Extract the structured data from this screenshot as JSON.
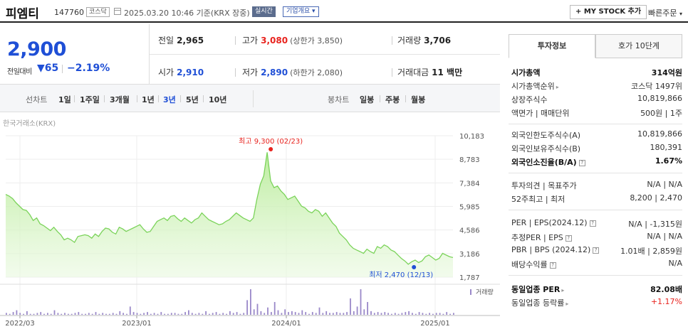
{
  "header": {
    "name": "피엠티",
    "code": "147760",
    "market": "코스닥",
    "datetime": "2025.03.20 10:46 기준(KRX 장중)",
    "realtime_label": "실시간",
    "overview_label": "기업개요",
    "mystock_label": "+ MY STOCK 추가",
    "quick_order_label": "빠른주문"
  },
  "price": {
    "current": "2,900",
    "change_label": "전일대비",
    "change": "▼65",
    "change_pct": "−2.19%"
  },
  "stats": {
    "prev_close_label": "전일",
    "prev_close": "2,965",
    "high_label": "고가",
    "high": "3,080",
    "upper_limit": "(상한가 3,850)",
    "volume_label": "거래량",
    "volume": "3,706",
    "open_label": "시가",
    "open": "2,910",
    "low_label": "저가",
    "low": "2,890",
    "lower_limit": "(하한가 2,080)",
    "trade_value_label": "거래대금",
    "trade_value": "11 백만"
  },
  "periods": {
    "line_label": "선차트",
    "line_tabs": [
      "1일",
      "1주일",
      "3개월",
      "1년",
      "3년",
      "5년",
      "10년"
    ],
    "active": "3년",
    "candle_label": "봉차트",
    "candle_tabs": [
      "일봉",
      "주봉",
      "월봉"
    ]
  },
  "chart_data": {
    "type": "area",
    "source_label": "한국거래소(KRX)",
    "y_ticks": [
      "10,183",
      "8,783",
      "7,384",
      "5,985",
      "4,586",
      "3,186",
      "1,787"
    ],
    "ylim": [
      1787,
      10183
    ],
    "x_ticks": [
      "2022/03",
      "2023/01",
      "2024/01",
      "2025/01"
    ],
    "max_label": "최고 9,300 (02/23)",
    "min_label": "최저 2,470 (12/13)",
    "volume_label": "거래량",
    "series": [
      {
        "values": [
          6700,
          6600,
          6450,
          6200,
          6000,
          5800,
          5750,
          5500,
          5150,
          5300,
          4950,
          4850,
          4700,
          4550,
          4750,
          4500,
          4300,
          4000,
          4100,
          4000,
          3850,
          4200,
          4250,
          4300,
          4250,
          4100,
          4350,
          4200,
          4500,
          4700,
          4650,
          4450,
          4350,
          4750,
          4650,
          4500,
          4600,
          4700,
          4800,
          4900,
          4650,
          4450,
          4500,
          4800,
          5100,
          5200,
          5300,
          5150,
          5400,
          5450,
          5250,
          5100,
          5300,
          5150,
          5000,
          5200,
          5300,
          5600,
          5400,
          5200,
          5100,
          5000,
          4900,
          4950,
          5100,
          5200,
          5400,
          5600,
          5450,
          5300,
          5200,
          5100,
          5300,
          6400,
          7300,
          7800,
          9200,
          7500,
          7100,
          7200,
          6900,
          6700,
          6400,
          6500,
          6600,
          6300,
          6000,
          5900,
          5700,
          5600,
          5800,
          5700,
          5400,
          5600,
          5300,
          5000,
          4800,
          4400,
          4200,
          4000,
          3700,
          3500,
          3400,
          3300,
          3200,
          3450,
          3300,
          3200,
          3600,
          3500,
          3700,
          3600,
          3400,
          3300,
          3100,
          2900,
          2750,
          2550,
          2700,
          2800,
          2650,
          2750,
          3000,
          3100,
          2950,
          2800,
          2900,
          3200,
          3100,
          3000,
          2950
        ]
      }
    ],
    "volume": [
      2,
      1,
      3,
      5,
      2,
      1,
      4,
      1,
      1,
      2,
      3,
      1,
      2,
      1,
      5,
      2,
      1,
      2,
      1,
      1,
      2,
      3,
      1,
      1,
      2,
      1,
      3,
      1,
      2,
      1,
      1,
      2,
      1,
      4,
      2,
      1,
      9,
      3,
      2,
      1,
      2,
      3,
      1,
      2,
      1,
      3,
      1,
      1,
      2,
      2,
      1,
      1,
      3,
      5,
      2,
      1,
      2,
      1,
      4,
      1,
      2,
      3,
      1,
      2,
      1,
      4,
      2,
      3,
      1,
      2,
      16,
      28,
      6,
      12,
      4,
      2,
      8,
      3,
      14,
      5,
      2,
      6,
      3,
      4,
      3,
      2,
      5,
      3,
      1,
      3,
      2,
      8,
      2,
      4,
      2,
      2,
      3,
      2,
      2,
      3,
      18,
      4,
      9,
      28,
      6,
      14,
      4,
      2,
      3,
      2,
      3,
      2,
      1,
      2,
      1,
      2,
      3,
      4,
      2,
      1,
      3,
      2,
      1,
      2,
      1,
      2,
      2,
      1,
      3,
      1,
      2
    ]
  },
  "right_panel": {
    "tabs": [
      "투자정보",
      "호가 10단계"
    ],
    "active_tab": "투자정보",
    "sections": [
      [
        {
          "k": "시가총액",
          "v": "314억원",
          "bold": true
        },
        {
          "k": "시가총액순위",
          "v": "코스닥 1497위",
          "arrow": true
        },
        {
          "k": "상장주식수",
          "v": "10,819,866"
        },
        {
          "k": "액면가 | 매매단위",
          "v": "500원 | 1주"
        }
      ],
      [
        {
          "k": "외국인한도주식수(A)",
          "v": "10,819,866"
        },
        {
          "k": "외국인보유주식수(B)",
          "v": "180,391"
        },
        {
          "k": "외국인소진율(B/A)",
          "v": "1.67%",
          "bold": true,
          "q": true
        }
      ],
      [
        {
          "k": "투자의견 | 목표주가",
          "v": "N/A | N/A"
        },
        {
          "k": "52주최고 | 최저",
          "v": "8,200 | 2,470"
        }
      ],
      [
        {
          "k": "PER | EPS(2024.12)",
          "v": "N/A | -1,315원",
          "q": true
        },
        {
          "k": "추정PER | EPS",
          "v": "N/A | N/A",
          "q": true
        },
        {
          "k": "PBR | BPS (2024.12)",
          "v": "1.01배 | 2,859원",
          "q": true
        },
        {
          "k": "배당수익률",
          "v": "N/A",
          "q": true
        }
      ],
      [
        {
          "k": "동일업종 PER",
          "v": "82.08배",
          "bold": true,
          "arrow": true
        },
        {
          "k": "동일업종 등락률",
          "v": "+1.17%",
          "arrow": true,
          "red": true
        }
      ]
    ]
  }
}
